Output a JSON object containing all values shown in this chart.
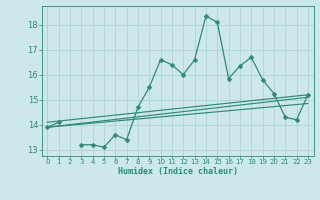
{
  "x": [
    0,
    1,
    2,
    3,
    4,
    5,
    6,
    7,
    8,
    9,
    10,
    11,
    12,
    13,
    14,
    15,
    16,
    17,
    18,
    19,
    20,
    21,
    22,
    23
  ],
  "y_main": [
    13.9,
    14.1,
    null,
    13.2,
    13.2,
    13.1,
    13.6,
    13.4,
    14.7,
    15.5,
    16.6,
    16.4,
    16.0,
    16.6,
    18.35,
    18.1,
    15.85,
    16.35,
    16.7,
    15.8,
    15.25,
    14.3,
    14.2,
    15.2
  ],
  "y_trend1_x": [
    0,
    23
  ],
  "y_trend1_y": [
    14.1,
    15.2
  ],
  "y_trend2_x": [
    0,
    23
  ],
  "y_trend2_y": [
    13.9,
    15.1
  ],
  "y_trend3_x": [
    0,
    23
  ],
  "y_trend3_y": [
    13.9,
    14.85
  ],
  "line_color": "#2e8b72",
  "bg_color": "#cde8ea",
  "grid_color": "#a8d0d2",
  "ylim": [
    12.75,
    18.75
  ],
  "xlim": [
    -0.5,
    23.5
  ],
  "yticks": [
    13,
    14,
    15,
    16,
    17,
    18
  ],
  "xticks": [
    0,
    1,
    2,
    3,
    4,
    5,
    6,
    7,
    8,
    9,
    10,
    11,
    12,
    13,
    14,
    15,
    16,
    17,
    18,
    19,
    20,
    21,
    22,
    23
  ],
  "xlabel": "Humidex (Indice chaleur)",
  "marker": "D",
  "markersize": 2.5,
  "lw_main": 0.9,
  "lw_trend": 0.85
}
